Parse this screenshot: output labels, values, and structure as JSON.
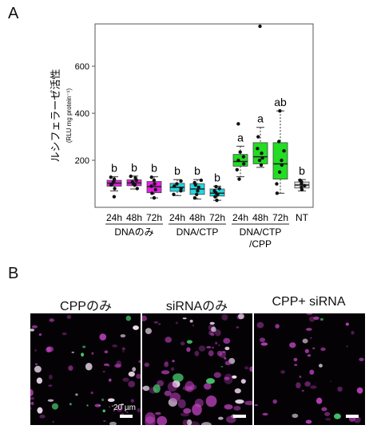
{
  "panel_a_label": "A",
  "panel_b_label": "B",
  "chart_data": {
    "type": "boxplot",
    "ylabel": "ルシフェラーゼ活性",
    "ylabel_units": "(RLU mg protein⁻¹)",
    "ylim": [
      0,
      780
    ],
    "yticks": [
      200,
      400,
      600
    ],
    "grid": false,
    "legend": "none",
    "categories": [
      "24h",
      "48h",
      "72h",
      "24h",
      "48h",
      "72h",
      "24h",
      "48h",
      "72h",
      "NT"
    ],
    "groups": [
      {
        "label": "DNAのみ",
        "from": 0,
        "to": 2
      },
      {
        "label": "DNA/CTP",
        "from": 3,
        "to": 5
      },
      {
        "label": "DNA/CTP\n/CPP",
        "from": 6,
        "to": 8
      }
    ],
    "boxes": [
      {
        "q1": 90,
        "median": 103,
        "q3": 115,
        "wlo": 70,
        "whi": 130,
        "color": "#e020e0",
        "letter": "b",
        "points": [
          45,
          80,
          95,
          100,
          110,
          120,
          128
        ]
      },
      {
        "q1": 92,
        "median": 104,
        "q3": 117,
        "wlo": 78,
        "whi": 133,
        "color": "#e020e0",
        "letter": "b",
        "points": [
          80,
          95,
          100,
          108,
          115,
          125,
          132
        ]
      },
      {
        "q1": 62,
        "median": 88,
        "q3": 110,
        "wlo": 40,
        "whi": 130,
        "color": "#e020e0",
        "letter": "b",
        "points": [
          40,
          60,
          75,
          90,
          100,
          115,
          128
        ]
      },
      {
        "q1": 68,
        "median": 85,
        "q3": 102,
        "wlo": 50,
        "whi": 118,
        "color": "#20d8e0",
        "letter": "b",
        "points": [
          55,
          70,
          80,
          90,
          100,
          112
        ]
      },
      {
        "q1": 55,
        "median": 78,
        "q3": 100,
        "wlo": 35,
        "whi": 118,
        "color": "#20d8e0",
        "letter": "b",
        "points": [
          40,
          55,
          70,
          85,
          95,
          105,
          115
        ]
      },
      {
        "q1": 48,
        "median": 60,
        "q3": 78,
        "wlo": 30,
        "whi": 90,
        "color": "#20d8e0",
        "letter": "b",
        "points": [
          30,
          45,
          55,
          62,
          70,
          80,
          88
        ]
      },
      {
        "q1": 175,
        "median": 195,
        "q3": 225,
        "wlo": 130,
        "whi": 260,
        "color": "#22dd22",
        "letter": "a",
        "points": [
          120,
          160,
          185,
          200,
          215,
          235,
          355
        ]
      },
      {
        "q1": 185,
        "median": 215,
        "q3": 275,
        "wlo": 170,
        "whi": 340,
        "color": "#22dd22",
        "letter": "a",
        "points": [
          180,
          200,
          210,
          230,
          250,
          300,
          770
        ]
      },
      {
        "q1": 120,
        "median": 185,
        "q3": 275,
        "wlo": 60,
        "whi": 410,
        "color": "#22dd22",
        "letter": "ab",
        "points": [
          60,
          100,
          150,
          180,
          200,
          240,
          280,
          410
        ]
      },
      {
        "q1": 82,
        "median": 95,
        "q3": 108,
        "wlo": 70,
        "whi": 118,
        "color": "#dddddd",
        "letter": "b",
        "points": [
          75,
          85,
          92,
          100,
          108,
          115
        ]
      }
    ]
  },
  "micrographs": [
    {
      "title": "CPPのみ",
      "scale_label": "20 µm"
    },
    {
      "title": "siRNAのみ",
      "scale_label": ""
    },
    {
      "title": "CPP+ siRNA",
      "scale_label": ""
    }
  ]
}
